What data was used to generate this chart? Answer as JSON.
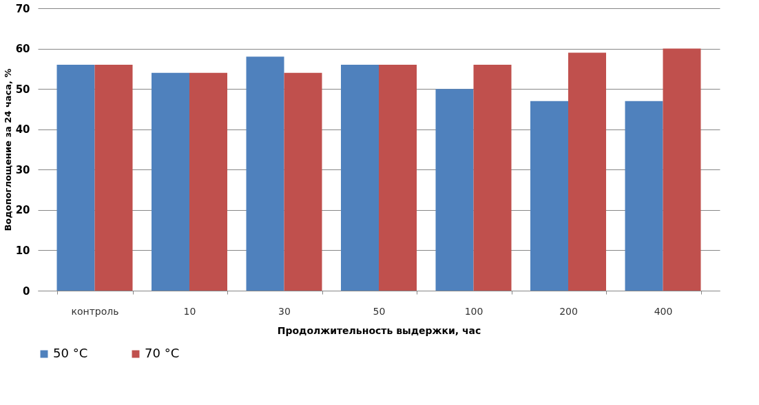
{
  "chart_data": {
    "type": "bar",
    "xlabel": "Продолжительность  выдержки, час",
    "ylabel": "Водопоглощение за 24 часа, %",
    "categories": [
      "контроль",
      "10",
      "30",
      "50",
      "100",
      "200",
      "400"
    ],
    "series": [
      {
        "name": "50 °C",
        "color": "#4f81bd",
        "values": [
          56,
          54,
          58,
          56,
          50,
          47,
          47
        ]
      },
      {
        "name": "70 °C",
        "color": "#c0504d",
        "values": [
          56,
          54,
          54,
          56,
          56,
          59,
          60
        ]
      }
    ],
    "ylim": [
      0,
      70
    ],
    "yticks": [
      0,
      10,
      20,
      30,
      40,
      50,
      60,
      70
    ],
    "grid": "y",
    "legend": "bottom"
  }
}
